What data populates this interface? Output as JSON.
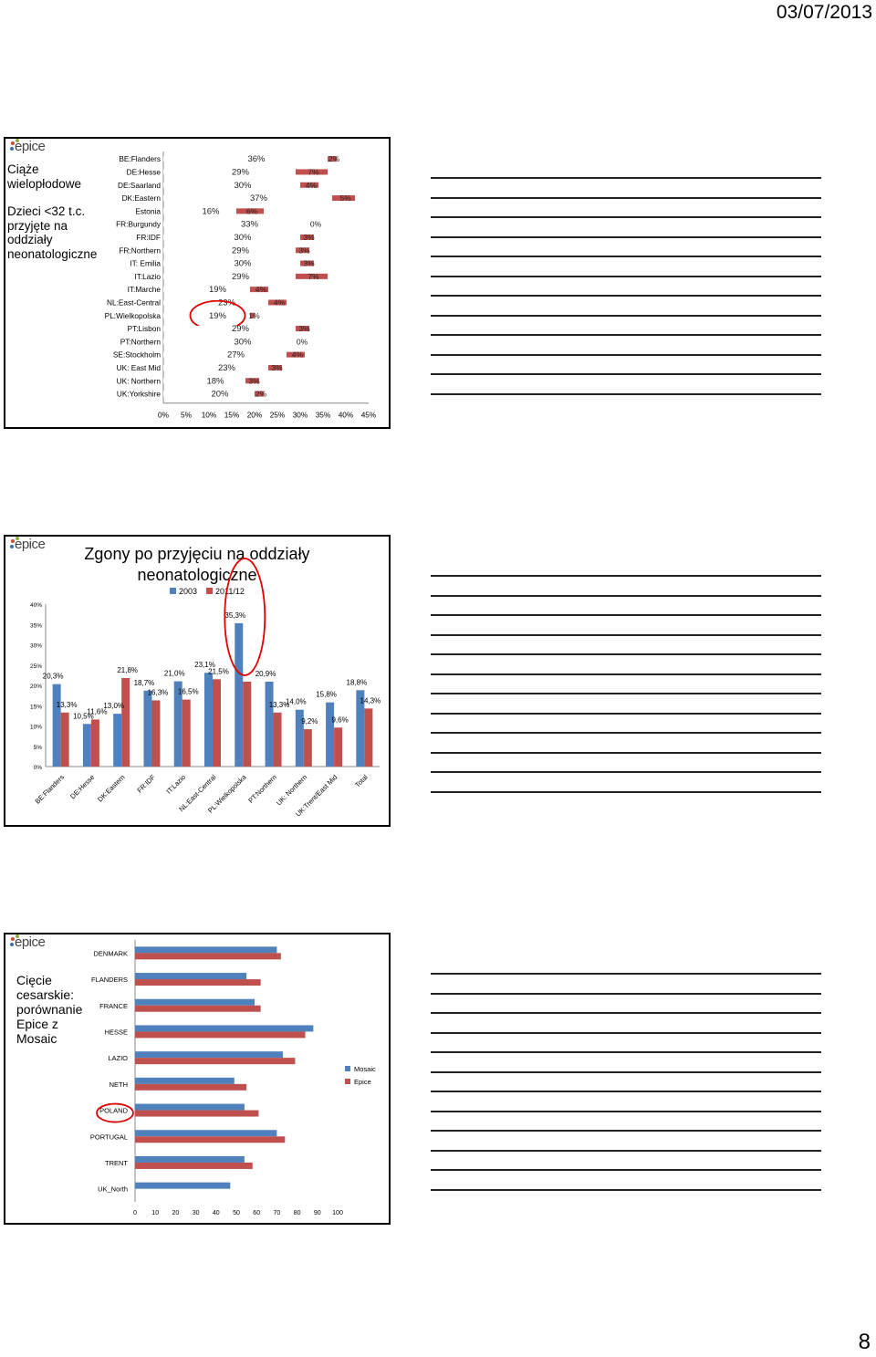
{
  "header": {
    "date": "03/07/2013"
  },
  "footer": {
    "page_number": "8"
  },
  "logo_text": "epice",
  "colors": {
    "blue": "#4f81bd",
    "red": "#c0504d",
    "highlight_circle": "#e00000"
  },
  "slide1": {
    "title_lines": [
      "Ciąże",
      "wielopłodowe",
      "",
      "Dzieci <32 t.c.",
      "przyjęte na",
      "oddziały",
      "neonatologiczne"
    ]
  },
  "slide2": {
    "title_lines": [
      "Zgony po przyjęciu na oddziały",
      "neonatologiczne"
    ]
  },
  "slide3": {
    "title_lines": [
      "Cięcie",
      "cesarskie:",
      "porównanie",
      "Epice z",
      "Mosaic"
    ]
  },
  "chart_data": [
    {
      "type": "bar",
      "orientation": "horizontal",
      "stacked": true,
      "categories": [
        "BE:Flanders",
        "DE:Hesse",
        "DE:Saarland",
        "DK:Eastern",
        "Estonia",
        "FR:Burgundy",
        "FR:IDF",
        "FR:Northern",
        "IT: Emilia",
        "IT:Lazio",
        "IT:Marche",
        "NL:East-Central",
        "PL:Wielkopolska",
        "PT:Lisbon",
        "PT:Northern",
        "SE:Stockholm",
        "UK: East Mid",
        "UK: Northern",
        "UK:Yorkshire"
      ],
      "series": [
        {
          "values": [
            36,
            29,
            30,
            37,
            16,
            33,
            30,
            29,
            30,
            29,
            19,
            23,
            19,
            29,
            30,
            27,
            23,
            18,
            20
          ]
        },
        {
          "values": [
            2,
            7,
            4,
            5,
            6,
            0,
            3,
            3,
            3,
            7,
            4,
            4,
            1,
            3,
            0,
            4,
            3,
            3,
            2
          ]
        }
      ],
      "series1_labels": [
        "36%",
        "29%",
        "30%",
        "37%",
        "16%",
        "33%",
        "30%",
        "29%",
        "30%",
        "29%",
        "19%",
        "23%",
        "19%",
        "29%",
        "30%",
        "27%",
        "23%",
        "18%",
        "20%"
      ],
      "series2_labels": [
        "2%",
        "7%",
        "4%",
        "5%",
        "6%",
        "0%",
        "3%",
        "3%",
        "3%",
        "7%",
        "4%",
        "4%",
        "1%",
        "3%",
        "0%",
        "4%",
        "3%",
        "3%",
        "2%"
      ],
      "x_ticks": [
        "0%",
        "5%",
        "10%",
        "15%",
        "20%",
        "25%",
        "30%",
        "35%",
        "40%",
        "45%"
      ],
      "xlim": [
        0,
        45
      ],
      "highlighted": [
        "PL:Wielkopolska"
      ]
    },
    {
      "type": "bar",
      "title": "Zgony po przyjęciu na oddziały neonatologiczne",
      "categories": [
        "BE:Flanders",
        "DE:Hesse",
        "DK:Eastern",
        "FR:IDF",
        "IT:Lazio",
        "NL:East-Central",
        "PL:Wielkopolska",
        "PT:Northern",
        "UK: Northern",
        "UK:Trent/East Mid",
        "Total"
      ],
      "series": [
        {
          "name": "2003",
          "values": [
            20.3,
            10.5,
            13.0,
            18.7,
            21.0,
            23.1,
            35.3,
            20.9,
            14.0,
            15.8,
            18.8
          ]
        },
        {
          "name": "2011/12",
          "values": [
            13.3,
            11.6,
            21.8,
            16.3,
            16.5,
            21.5,
            20.9,
            13.3,
            9.2,
            9.6,
            14.3
          ]
        }
      ],
      "series1_labels": [
        "20,3%",
        "10,5%",
        "13,0%",
        "18,7%",
        "21,0%",
        "23,1%",
        "35,3%",
        "20,9%",
        "14,0%",
        "15,8%",
        "18,8%"
      ],
      "series2_labels": [
        "13,3%",
        "11,6%",
        "21,8%",
        "16,3%",
        "16,5%",
        "21,5%",
        "",
        "13,3%",
        "9,2%",
        "9,6%",
        "14,3%"
      ],
      "y_ticks": [
        "0%",
        "5%",
        "10%",
        "15%",
        "20%",
        "25%",
        "30%",
        "35%",
        "40%"
      ],
      "ylim": [
        0,
        40
      ],
      "legend_position": "top",
      "highlighted": [
        "PL:Wielkopolska"
      ]
    },
    {
      "type": "bar",
      "orientation": "horizontal",
      "categories": [
        "DENMARK",
        "FLANDERS",
        "FRANCE",
        "HESSE",
        "LAZIO",
        "NETH",
        "POLAND",
        "PORTUGAL",
        "TRENT",
        "UK_North"
      ],
      "series": [
        {
          "name": "Mosaic",
          "values": [
            70,
            55,
            59,
            88,
            73,
            49,
            54,
            70,
            54,
            47
          ]
        },
        {
          "name": "Epice",
          "values": [
            72,
            62,
            62,
            84,
            79,
            55,
            61,
            74,
            58,
            null
          ]
        }
      ],
      "x_ticks": [
        "0",
        "10",
        "20",
        "30",
        "40",
        "50",
        "60",
        "70",
        "80",
        "90",
        "100"
      ],
      "xlim": [
        0,
        100
      ],
      "legend_position": "right",
      "highlighted": [
        "POLAND"
      ]
    }
  ]
}
